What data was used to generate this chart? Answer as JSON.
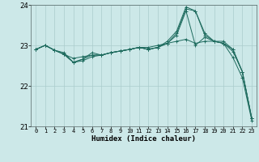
{
  "xlabel": "Humidex (Indice chaleur)",
  "xlim": [
    -0.5,
    23.5
  ],
  "ylim": [
    21,
    24
  ],
  "yticks": [
    21,
    22,
    23,
    24
  ],
  "xticks": [
    0,
    1,
    2,
    3,
    4,
    5,
    6,
    7,
    8,
    9,
    10,
    11,
    12,
    13,
    14,
    15,
    16,
    17,
    18,
    19,
    20,
    21,
    22,
    23
  ],
  "background_color": "#cce8e8",
  "grid_color": "#aacccc",
  "line_color": "#1e6b5e",
  "lines": [
    {
      "x": [
        0,
        1,
        2,
        3,
        4,
        5,
        6,
        7,
        8,
        9,
        10,
        11,
        12,
        13,
        14,
        15,
        16,
        17,
        18,
        19,
        20,
        21,
        22,
        23
      ],
      "y": [
        22.9,
        23.0,
        22.88,
        22.78,
        22.68,
        22.72,
        22.76,
        22.76,
        22.82,
        22.86,
        22.9,
        22.95,
        22.95,
        23.0,
        23.05,
        23.1,
        23.15,
        23.05,
        23.1,
        23.1,
        23.05,
        22.85,
        22.35,
        21.2
      ]
    },
    {
      "x": [
        0,
        1,
        2,
        3,
        4,
        5,
        6,
        7,
        8,
        9,
        10,
        11,
        12,
        13,
        14,
        15,
        16,
        17,
        18,
        19,
        20,
        21,
        22,
        23
      ],
      "y": [
        22.9,
        23.0,
        22.88,
        22.82,
        22.58,
        22.66,
        22.82,
        22.76,
        22.82,
        22.86,
        22.9,
        22.95,
        22.9,
        22.95,
        23.05,
        23.3,
        23.9,
        23.85,
        23.3,
        23.1,
        23.1,
        22.9,
        22.35,
        21.2
      ]
    },
    {
      "x": [
        0,
        1,
        2,
        3,
        4,
        5,
        6,
        7,
        8,
        9,
        10,
        11,
        12,
        13,
        14,
        15,
        16,
        17,
        18,
        19,
        20,
        21,
        22,
        23
      ],
      "y": [
        22.9,
        23.0,
        22.88,
        22.78,
        22.58,
        22.66,
        22.76,
        22.76,
        22.82,
        22.86,
        22.9,
        22.95,
        22.9,
        22.95,
        23.1,
        23.35,
        23.95,
        23.85,
        23.25,
        23.1,
        23.05,
        22.9,
        22.35,
        21.2
      ]
    },
    {
      "x": [
        0,
        1,
        2,
        3,
        4,
        5,
        6,
        7,
        8,
        9,
        10,
        11,
        12,
        13,
        14,
        15,
        16,
        17,
        18,
        19,
        20,
        21,
        22,
        23
      ],
      "y": [
        22.9,
        23.0,
        22.88,
        22.78,
        22.58,
        22.62,
        22.72,
        22.76,
        22.82,
        22.86,
        22.9,
        22.95,
        22.9,
        22.95,
        23.05,
        23.25,
        23.85,
        23.0,
        23.2,
        23.1,
        23.05,
        22.7,
        22.2,
        21.15
      ]
    }
  ]
}
